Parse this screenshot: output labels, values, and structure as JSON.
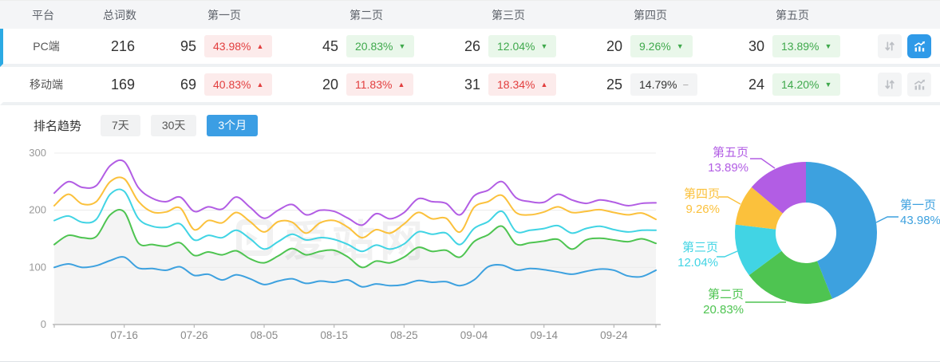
{
  "table": {
    "headers": [
      "平台",
      "总词数",
      "第一页",
      "第二页",
      "第三页",
      "第四页",
      "第五页"
    ],
    "rows": [
      {
        "platform": "PC端",
        "total": "216",
        "selected": true,
        "pages": [
          {
            "count": "95",
            "pct": "43.98%",
            "trend": "up"
          },
          {
            "count": "45",
            "pct": "20.83%",
            "trend": "down"
          },
          {
            "count": "26",
            "pct": "12.04%",
            "trend": "down"
          },
          {
            "count": "20",
            "pct": "9.26%",
            "trend": "down"
          },
          {
            "count": "30",
            "pct": "13.89%",
            "trend": "down"
          }
        ]
      },
      {
        "platform": "移动端",
        "total": "169",
        "selected": false,
        "pages": [
          {
            "count": "69",
            "pct": "40.83%",
            "trend": "up"
          },
          {
            "count": "20",
            "pct": "11.83%",
            "trend": "up"
          },
          {
            "count": "31",
            "pct": "18.34%",
            "trend": "up"
          },
          {
            "count": "25",
            "pct": "14.79%",
            "trend": "flat"
          },
          {
            "count": "24",
            "pct": "14.20%",
            "trend": "down"
          }
        ]
      }
    ]
  },
  "toolbar": {
    "title": "排名趋势",
    "ranges": [
      {
        "label": "7天",
        "active": false
      },
      {
        "label": "30天",
        "active": false
      },
      {
        "label": "3个月",
        "active": true
      }
    ]
  },
  "watermark": "爱站网",
  "colors": {
    "accent_blue": "#3b9ee4",
    "row_indicator": "#2caae4",
    "badge_up_text": "#e23e3e",
    "badge_down_text": "#3fa94c",
    "axis_text": "#8a8a8a"
  },
  "chart_data": [
    {
      "type": "line",
      "title": "排名趋势 3个月",
      "x": [
        "07-06",
        "07-08",
        "07-10",
        "07-12",
        "07-14",
        "07-16",
        "07-18",
        "07-20",
        "07-22",
        "07-24",
        "07-26",
        "07-28",
        "07-30",
        "08-01",
        "08-03",
        "08-05",
        "08-07",
        "08-09",
        "08-11",
        "08-13",
        "08-15",
        "08-17",
        "08-19",
        "08-21",
        "08-23",
        "08-25",
        "08-27",
        "08-29",
        "08-31",
        "09-02",
        "09-04",
        "09-06",
        "09-08",
        "09-10",
        "09-12",
        "09-14",
        "09-16",
        "09-18",
        "09-20",
        "09-22",
        "09-24",
        "09-26",
        "09-28",
        "09-30"
      ],
      "tick_labels": [
        "07-16",
        "07-26",
        "08-05",
        "08-15",
        "08-25",
        "09-04",
        "09-14",
        "09-24"
      ],
      "ylim": [
        0,
        300
      ],
      "yticks": [
        0,
        100,
        200,
        300
      ],
      "grid": true,
      "legend": "none",
      "series": [
        {
          "name": "第五页",
          "color": "#b25de4",
          "values": [
            230,
            250,
            240,
            243,
            278,
            285,
            240,
            221,
            215,
            223,
            198,
            206,
            202,
            223,
            205,
            186,
            200,
            210,
            192,
            200,
            198,
            186,
            174,
            194,
            185,
            196,
            220,
            215,
            212,
            192,
            225,
            235,
            250,
            222,
            215,
            214,
            228,
            218,
            212,
            218,
            214,
            208,
            212,
            213
          ]
        },
        {
          "name": "第四页",
          "color": "#fbc13c",
          "values": [
            208,
            228,
            211,
            215,
            250,
            255,
            216,
            197,
            197,
            204,
            166,
            182,
            178,
            196,
            180,
            162,
            180,
            179,
            160,
            178,
            182,
            170,
            152,
            166,
            160,
            176,
            196,
            185,
            186,
            162,
            205,
            215,
            226,
            196,
            192,
            197,
            206,
            196,
            198,
            201,
            196,
            192,
            195,
            184
          ]
        },
        {
          "name": "第三页",
          "color": "#41d4e4",
          "values": [
            182,
            190,
            179,
            184,
            228,
            233,
            186,
            172,
            170,
            176,
            148,
            156,
            152,
            165,
            150,
            132,
            145,
            158,
            148,
            152,
            149,
            140,
            128,
            139,
            132,
            141,
            162,
            158,
            160,
            140,
            168,
            180,
            198,
            163,
            165,
            168,
            173,
            160,
            168,
            172,
            166,
            162,
            165,
            165
          ]
        },
        {
          "name": "第二页",
          "color": "#4ec451",
          "area": true,
          "values": [
            140,
            156,
            152,
            154,
            192,
            197,
            143,
            140,
            137,
            143,
            121,
            127,
            122,
            129,
            115,
            108,
            120,
            133,
            122,
            128,
            130,
            118,
            100,
            111,
            108,
            118,
            135,
            128,
            130,
            118,
            145,
            157,
            172,
            141,
            143,
            146,
            149,
            132,
            148,
            151,
            148,
            145,
            150,
            142
          ]
        },
        {
          "name": "第一页",
          "color": "#3da1df",
          "values": [
            100,
            106,
            100,
            103,
            112,
            118,
            99,
            98,
            95,
            101,
            86,
            88,
            78,
            87,
            80,
            70,
            76,
            80,
            72,
            76,
            74,
            78,
            66,
            71,
            68,
            70,
            77,
            74,
            75,
            68,
            78,
            101,
            104,
            95,
            98,
            96,
            92,
            88,
            93,
            97,
            95,
            85,
            84,
            95
          ]
        }
      ]
    },
    {
      "type": "pie",
      "donut": true,
      "slices": [
        {
          "label": "第一页",
          "value": 43.98,
          "pct": "43.98%",
          "color": "#3da1df"
        },
        {
          "label": "第二页",
          "value": 20.83,
          "pct": "20.83%",
          "color": "#4ec451"
        },
        {
          "label": "第三页",
          "value": 12.04,
          "pct": "12.04%",
          "color": "#41d4e4"
        },
        {
          "label": "第四页",
          "value": 9.26,
          "pct": "9.26%",
          "color": "#fbc13c"
        },
        {
          "label": "第五页",
          "value": 13.89,
          "pct": "13.89%",
          "color": "#b25de4"
        }
      ]
    }
  ]
}
